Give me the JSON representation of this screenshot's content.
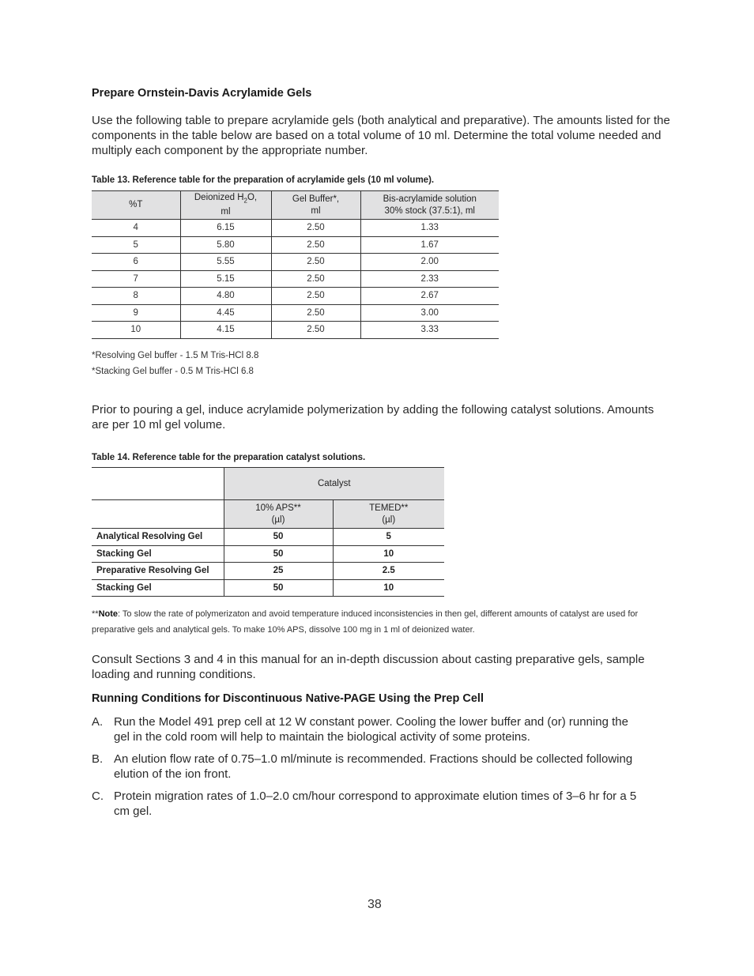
{
  "section1": {
    "heading": "Prepare Ornstein-Davis Acrylamide Gels",
    "intro": "Use the following table to prepare acrylamide gels (both analytical and preparative). The amounts listed for the components in the table below are based on a total volume of 10 ml. Determine the total volume needed and multiply each component by the appropriate number."
  },
  "table13": {
    "caption": "Table 13. Reference table for the preparation of acrylamide gels (10 ml volume).",
    "headers": [
      {
        "line1": "%T",
        "line2": ""
      },
      {
        "line1": "Deionized H",
        "sub": "2",
        "line1b": "O,",
        "line2": "ml"
      },
      {
        "line1": "Gel Buffer*,",
        "line2": "ml"
      },
      {
        "line1": "Bis-acrylamide solution",
        "line2": "30% stock (37.5:1), ml"
      }
    ],
    "rows": [
      [
        "4",
        "6.15",
        "2.50",
        "1.33"
      ],
      [
        "5",
        "5.80",
        "2.50",
        "1.67"
      ],
      [
        "6",
        "5.55",
        "2.50",
        "2.00"
      ],
      [
        "7",
        "5.15",
        "2.50",
        "2.33"
      ],
      [
        "8",
        "4.80",
        "2.50",
        "2.67"
      ],
      [
        "9",
        "4.45",
        "2.50",
        "3.00"
      ],
      [
        "10",
        "4.15",
        "2.50",
        "3.33"
      ]
    ],
    "footnotes": [
      "*Resolving Gel buffer - 1.5 M Tris-HCl 8.8",
      "*Stacking Gel buffer - 0.5 M Tris-HCl 6.8"
    ]
  },
  "section2": {
    "intro": "Prior to pouring a gel, induce acrylamide polymerization by adding the following catalyst solutions. Amounts are per 10 ml gel volume."
  },
  "table14": {
    "caption": "Table 14. Reference table for the preparation catalyst solutions.",
    "group_header": "Catalyst",
    "headers": [
      {
        "line1": "10% APS**",
        "line2": "(µl)"
      },
      {
        "line1": "TEMED**",
        "line2": "(µl)"
      }
    ],
    "rows": [
      [
        "Analytical Resolving Gel",
        "50",
        "5"
      ],
      [
        "Stacking Gel",
        "50",
        "10"
      ],
      [
        "Preparative Resolving Gel",
        "25",
        "2.5"
      ],
      [
        "Stacking Gel",
        "50",
        "10"
      ]
    ],
    "note_prefix": "**",
    "note_label": "Note",
    "note_text": ":  To slow the rate of polymerizaton and avoid temperature induced inconsistencies in then gel, different amounts of catalyst are used for preparative gels and analytical gels. To make 10% APS, dissolve 100 mg in 1 ml of deionized water."
  },
  "consult": "Consult Sections 3 and 4 in this manual for an in-depth discussion about casting preparative gels, sample loading and running conditions.",
  "section3": {
    "heading": "Running Conditions for Discontinuous Native-PAGE Using the Prep Cell",
    "items": [
      {
        "key": "A.",
        "text": "Run the Model 491 prep cell at 12 W constant power. Cooling the lower buffer and (or) running the gel in the cold room will help to maintain the biological activity of some proteins."
      },
      {
        "key": "B.",
        "text": "An elution flow rate of 0.75–1.0 ml/minute is recommended. Fractions should be collected following elution of the ion front."
      },
      {
        "key": "C.",
        "text": "Protein migration rates of 1.0–2.0 cm/hour correspond to approximate elution times of 3–6 hr for a 5 cm gel."
      }
    ]
  },
  "page_number": "38"
}
